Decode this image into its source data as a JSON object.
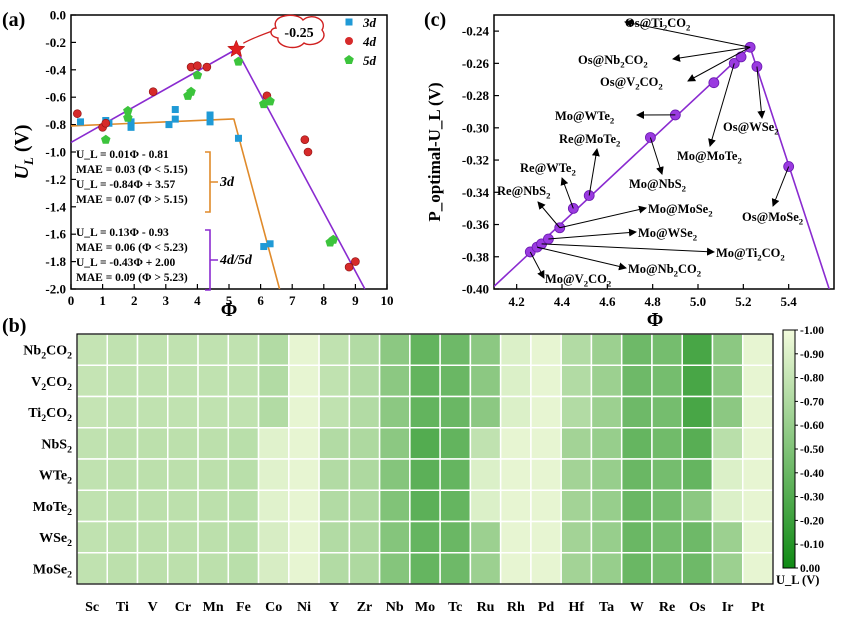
{
  "panel_labels": {
    "a": "(a)",
    "b": "(b)",
    "c": "(c)"
  },
  "chart_data": [
    {
      "id": "a",
      "type": "scatter",
      "xlabel": "Φ",
      "ylabel": {
        "main": "U",
        "sub": "L",
        "unit": " (V)"
      },
      "xlim": [
        0,
        10
      ],
      "ylim": [
        -2.0,
        0.0
      ],
      "xticks": [
        "0",
        "1",
        "2",
        "3",
        "4",
        "5",
        "6",
        "7",
        "8",
        "9",
        "10"
      ],
      "yticks": [
        "0.0",
        "-0.2",
        "-0.4",
        "-0.6",
        "-0.8",
        "-1.0",
        "-1.2",
        "-1.4",
        "-1.6",
        "-1.8",
        "-2.0"
      ],
      "legend": [
        "3d",
        "4d",
        "5d"
      ],
      "colors": {
        "3d": "#1f9ad6",
        "4d": "#d62a2a",
        "5d": "#3cc43c",
        "fit3d": "#e08a2a",
        "fit45d": "#8a2bd0",
        "star": "#e02020",
        "callout": "#d02020",
        "callout_text": "#1a2f9a"
      },
      "series": [
        {
          "name": "3d",
          "marker": "square",
          "points": [
            [
              0.3,
              -0.78
            ],
            [
              1.1,
              -0.77
            ],
            [
              1.2,
              -0.79
            ],
            [
              1.9,
              -0.82
            ],
            [
              1.9,
              -0.78
            ],
            [
              3.1,
              -0.8
            ],
            [
              3.3,
              -0.69
            ],
            [
              3.3,
              -0.76
            ],
            [
              4.4,
              -0.73
            ],
            [
              4.4,
              -0.78
            ],
            [
              5.3,
              -0.9
            ],
            [
              6.1,
              -1.69
            ],
            [
              6.3,
              -1.67
            ]
          ]
        },
        {
          "name": "4d",
          "marker": "circle",
          "points": [
            [
              0.2,
              -0.72
            ],
            [
              1.0,
              -0.82
            ],
            [
              1.1,
              -0.79
            ],
            [
              2.6,
              -0.56
            ],
            [
              3.8,
              -0.38
            ],
            [
              4.0,
              -0.37
            ],
            [
              4.3,
              -0.38
            ],
            [
              6.2,
              -0.59
            ],
            [
              7.4,
              -0.91
            ],
            [
              7.5,
              -1.0
            ],
            [
              8.8,
              -1.84
            ],
            [
              9.0,
              -1.8
            ]
          ]
        },
        {
          "name": "5d",
          "marker": "pentagon",
          "points": [
            [
              1.1,
              -0.91
            ],
            [
              1.8,
              -0.7
            ],
            [
              1.8,
              -0.75
            ],
            [
              3.7,
              -0.59
            ],
            [
              3.8,
              -0.56
            ],
            [
              4.0,
              -0.44
            ],
            [
              5.3,
              -0.34
            ],
            [
              6.1,
              -0.65
            ],
            [
              6.3,
              -0.63
            ],
            [
              8.2,
              -1.66
            ],
            [
              8.3,
              -1.64
            ]
          ]
        }
      ],
      "fit_lines": [
        {
          "name": "3d",
          "segments": [
            [
              [
                0,
                -0.81
              ],
              [
                5.15,
                -0.7585
              ]
            ],
            [
              [
                5.15,
                -0.756
              ],
              [
                6.6,
                -2.0
              ]
            ]
          ]
        },
        {
          "name": "4d/5d",
          "segments": [
            [
              [
                0,
                -0.93
              ],
              [
                5.23,
                -0.25
              ]
            ],
            [
              [
                5.23,
                -0.25
              ],
              [
                9.3,
                -2.0
              ]
            ]
          ]
        }
      ],
      "peak": {
        "x": 5.23,
        "y": -0.25,
        "label": "-0.25"
      },
      "eq3d": [
        "U_L = 0.01Φ - 0.81",
        "MAE = 0.03 (Φ < 5.15)",
        "U_L = -0.84Φ + 3.57",
        "MAE = 0.07 (Φ > 5.15)"
      ],
      "eq3d_tag": "3d",
      "eq45d": [
        "U_L = 0.13Φ - 0.93",
        "MAE = 0.06 (Φ < 5.23)",
        "U_L = -0.43Φ + 2.00",
        "MAE = 0.09 (Φ > 5.23)"
      ],
      "eq45d_tag": "4d/5d"
    },
    {
      "id": "c",
      "type": "scatter",
      "xlabel": "Φ",
      "ylabel": "P_optimal-U_L (V)",
      "xlim": [
        4.1,
        5.6
      ],
      "ylim": [
        -0.4,
        -0.23
      ],
      "xticks": [
        "4.2",
        "4.4",
        "4.6",
        "4.8",
        "5.0",
        "5.2",
        "5.4"
      ],
      "yticks": [
        "-0.24",
        "-0.26",
        "-0.28",
        "-0.30",
        "-0.32",
        "-0.34",
        "-0.36",
        "-0.38",
        "-0.40"
      ],
      "points": [
        [
          4.26,
          -0.377
        ],
        [
          4.29,
          -0.374
        ],
        [
          4.31,
          -0.372
        ],
        [
          4.34,
          -0.369
        ],
        [
          4.39,
          -0.362
        ],
        [
          4.45,
          -0.35
        ],
        [
          4.52,
          -0.342
        ],
        [
          4.79,
          -0.306
        ],
        [
          4.9,
          -0.292
        ],
        [
          5.07,
          -0.272
        ],
        [
          5.16,
          -0.26
        ],
        [
          5.19,
          -0.256
        ],
        [
          5.23,
          -0.25
        ],
        [
          5.26,
          -0.262
        ],
        [
          5.4,
          -0.324
        ]
      ],
      "line": [
        [
          4.1,
          -0.3984
        ],
        [
          5.23,
          -0.25
        ],
        [
          5.6,
          -0.4091
        ]
      ],
      "annotations": [
        {
          "label": "Os@Ti2CO2",
          "text": "Os@Ti",
          "sub": "2",
          "post": "CO",
          "sub2": "2",
          "target": [
            5.23,
            -0.25
          ]
        },
        {
          "label": "Os@Nb2CO2",
          "text": "Os@Nb",
          "sub": "2",
          "post": "CO",
          "sub2": "2",
          "target": [
            5.23,
            -0.25
          ]
        },
        {
          "label": "Os@V2CO2",
          "text": "Os@V",
          "sub": "2",
          "post": "CO",
          "sub2": "2",
          "target": [
            5.23,
            -0.25
          ]
        },
        {
          "label": "Mo@WTe2",
          "text": "Mo@WTe",
          "sub": "2",
          "target": [
            4.9,
            -0.292
          ]
        },
        {
          "label": "Os@WSe2",
          "text": "Os@WSe",
          "sub": "2",
          "target": [
            5.26,
            -0.262
          ]
        },
        {
          "label": "Re@MoTe2",
          "text": "Re@MoTe",
          "sub": "2",
          "target": [
            4.52,
            -0.342
          ]
        },
        {
          "label": "Mo@MoTe2",
          "text": "Mo@MoTe",
          "sub": "2",
          "target": [
            5.16,
            -0.26
          ]
        },
        {
          "label": "Re@WTe2",
          "text": "Re@WTe",
          "sub": "2",
          "target": [
            4.45,
            -0.35
          ]
        },
        {
          "label": "Mo@NbS2",
          "text": "Mo@NbS",
          "sub": "2",
          "target": [
            4.79,
            -0.306
          ]
        },
        {
          "label": "Re@NbS2",
          "text": "Re@NbS",
          "sub": "2",
          "target": [
            4.39,
            -0.362
          ]
        },
        {
          "label": "Mo@MoSe2",
          "text": "Mo@MoSe",
          "sub": "2",
          "target": [
            4.39,
            -0.362
          ]
        },
        {
          "label": "Os@MoSe2",
          "text": "Os@MoSe",
          "sub": "2",
          "target": [
            5.4,
            -0.324
          ]
        },
        {
          "label": "Mo@WSe2",
          "text": "Mo@WSe",
          "sub": "2",
          "target": [
            4.34,
            -0.369
          ]
        },
        {
          "label": "Mo@Ti2CO2",
          "text": "Mo@Ti",
          "sub": "2",
          "post": "CO",
          "sub2": "2",
          "target": [
            4.31,
            -0.372
          ]
        },
        {
          "label": "Mo@Nb2CO2",
          "text": "Mo@Nb",
          "sub": "2",
          "post": "CO",
          "sub2": "2",
          "target": [
            4.29,
            -0.374
          ]
        },
        {
          "label": "Mo@V2CO2",
          "text": "Mo@V",
          "sub": "2",
          "post": "CO",
          "sub2": "2",
          "target": [
            4.26,
            -0.377
          ]
        }
      ]
    },
    {
      "id": "b",
      "type": "heatmap",
      "rows": [
        "Nb2CO2",
        "V2CO2",
        "Ti2CO2",
        "NbS2",
        "WTe2",
        "MoTe2",
        "WSe2",
        "MoSe2"
      ],
      "row_labels": [
        [
          "Nb",
          "2",
          "CO",
          "2"
        ],
        [
          "V",
          "2",
          "CO",
          "2"
        ],
        [
          "Ti",
          "2",
          "CO",
          "2"
        ],
        [
          "NbS",
          "2"
        ],
        [
          "WTe",
          "2"
        ],
        [
          "MoTe",
          "2"
        ],
        [
          "WSe",
          "2"
        ],
        [
          "MoSe",
          "2"
        ]
      ],
      "columns": [
        "Sc",
        "Ti",
        "V",
        "Cr",
        "Mn",
        "Fe",
        "Co",
        "Ni",
        "Y",
        "Zr",
        "Nb",
        "Mo",
        "Tc",
        "Ru",
        "Rh",
        "Pd",
        "Hf",
        "Ta",
        "W",
        "Re",
        "Os",
        "Ir",
        "Pt"
      ],
      "values": [
        [
          -0.8,
          -0.78,
          -0.78,
          -0.78,
          -0.78,
          -0.78,
          -0.72,
          -0.95,
          -0.78,
          -0.72,
          -0.55,
          -0.37,
          -0.42,
          -0.55,
          -0.9,
          -0.95,
          -0.72,
          -0.62,
          -0.42,
          -0.45,
          -0.25,
          -0.55,
          -0.95
        ],
        [
          -0.8,
          -0.78,
          -0.78,
          -0.78,
          -0.78,
          -0.78,
          -0.72,
          -0.95,
          -0.78,
          -0.72,
          -0.55,
          -0.37,
          -0.4,
          -0.55,
          -0.9,
          -0.95,
          -0.72,
          -0.62,
          -0.42,
          -0.45,
          -0.25,
          -0.55,
          -0.95
        ],
        [
          -0.8,
          -0.78,
          -0.78,
          -0.78,
          -0.78,
          -0.78,
          -0.72,
          -0.95,
          -0.78,
          -0.72,
          -0.55,
          -0.37,
          -0.4,
          -0.55,
          -0.9,
          -0.95,
          -0.72,
          -0.62,
          -0.42,
          -0.45,
          -0.25,
          -0.55,
          -0.95
        ],
        [
          -0.78,
          -0.76,
          -0.76,
          -0.76,
          -0.76,
          -0.75,
          -0.92,
          -0.95,
          -0.72,
          -0.7,
          -0.55,
          -0.3,
          -0.37,
          -0.78,
          -0.95,
          -0.95,
          -0.65,
          -0.6,
          -0.38,
          -0.43,
          -0.32,
          -0.75,
          -0.95
        ],
        [
          -0.78,
          -0.76,
          -0.76,
          -0.76,
          -0.76,
          -0.75,
          -0.92,
          -0.95,
          -0.72,
          -0.7,
          -0.52,
          -0.34,
          -0.38,
          -0.9,
          -0.95,
          -0.95,
          -0.65,
          -0.6,
          -0.4,
          -0.45,
          -0.38,
          -0.9,
          -0.95
        ],
        [
          -0.78,
          -0.76,
          -0.76,
          -0.76,
          -0.76,
          -0.75,
          -0.92,
          -0.95,
          -0.72,
          -0.7,
          -0.5,
          -0.34,
          -0.38,
          -0.9,
          -0.95,
          -0.95,
          -0.65,
          -0.6,
          -0.4,
          -0.45,
          -0.55,
          -0.9,
          -0.95
        ],
        [
          -0.78,
          -0.76,
          -0.76,
          -0.76,
          -0.76,
          -0.75,
          -0.88,
          -0.95,
          -0.72,
          -0.7,
          -0.52,
          -0.38,
          -0.4,
          -0.62,
          -0.95,
          -0.95,
          -0.65,
          -0.6,
          -0.4,
          -0.45,
          -0.42,
          -0.62,
          -0.95
        ],
        [
          -0.78,
          -0.76,
          -0.76,
          -0.76,
          -0.76,
          -0.75,
          -0.88,
          -0.95,
          -0.72,
          -0.7,
          -0.52,
          -0.38,
          -0.42,
          -0.62,
          -0.95,
          -0.95,
          -0.65,
          -0.6,
          -0.4,
          -0.45,
          -0.42,
          -0.62,
          -0.95
        ]
      ],
      "colorbar": {
        "label": "U_L (V)",
        "min": -1.0,
        "max": 0.0,
        "ticks": [
          "-1.00",
          "-0.90",
          "-0.80",
          "-0.70",
          "-0.60",
          "-0.50",
          "-0.40",
          "-0.30",
          "-0.20",
          "-0.10",
          "0.00"
        ],
        "color_min": "#f2fbdc",
        "color_max": "#0f8a14"
      }
    }
  ]
}
